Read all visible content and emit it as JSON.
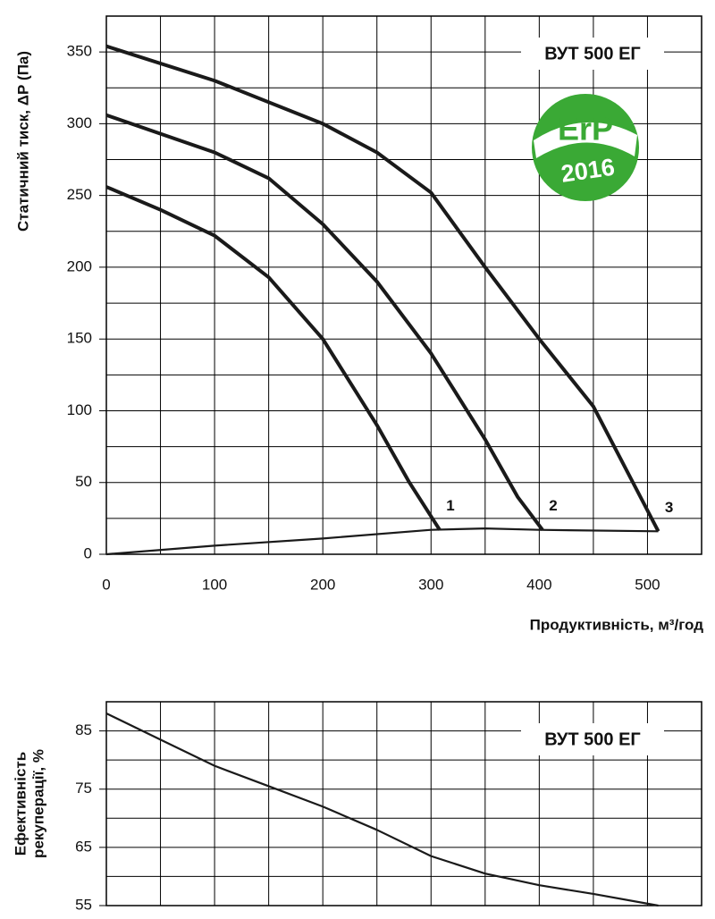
{
  "chart_data": [
    {
      "type": "line",
      "ylabel": "Статичний тиск, ΔР (Па)",
      "xlabel": "Продуктивність, м³/год",
      "badge": "ВУТ 500 ЕГ",
      "logo": {
        "text": "ErP",
        "year": "2016"
      },
      "xlim": [
        0,
        550
      ],
      "ylim": [
        0,
        375
      ],
      "xticks": [
        0,
        100,
        200,
        300,
        400,
        500
      ],
      "yticks": [
        0,
        50,
        100,
        150,
        200,
        250,
        300,
        350
      ],
      "xgrid": [
        50,
        150,
        250,
        350,
        450
      ],
      "ygrid": [
        25,
        75,
        125,
        175,
        225,
        275,
        325
      ],
      "series": [
        {
          "name": "1",
          "color": "#1a1a1a",
          "x": [
            0,
            50,
            100,
            150,
            200,
            250,
            280,
            308
          ],
          "values": [
            256,
            240,
            222,
            193,
            150,
            90,
            50,
            17
          ]
        },
        {
          "name": "2",
          "color": "#1a1a1a",
          "x": [
            0,
            100,
            150,
            200,
            250,
            300,
            350,
            380,
            403
          ],
          "values": [
            306,
            280,
            262,
            230,
            190,
            140,
            80,
            40,
            17
          ]
        },
        {
          "name": "3",
          "color": "#1a1a1a",
          "x": [
            0,
            100,
            200,
            250,
            300,
            350,
            400,
            450,
            490,
            510
          ],
          "values": [
            354,
            330,
            300,
            280,
            252,
            200,
            150,
            103,
            45,
            16
          ]
        },
        {
          "color": "#1a1a1a",
          "x": [
            0,
            100,
            200,
            300,
            350,
            400,
            510
          ],
          "values": [
            0,
            6,
            11,
            17,
            18,
            17,
            16
          ]
        }
      ]
    },
    {
      "type": "line",
      "ylabel": [
        "Ефективність",
        "рекуперації, %"
      ],
      "badge": "ВУТ 500 ЕГ",
      "xlim": [
        0,
        550
      ],
      "ylim": [
        55,
        90
      ],
      "yticks": [
        55,
        65,
        75,
        85
      ],
      "xgrid": [
        50,
        100,
        150,
        200,
        250,
        300,
        350,
        400,
        450,
        500
      ],
      "ygrid": [
        60,
        70,
        80
      ],
      "series": [
        {
          "color": "#1a1a1a",
          "x": [
            0,
            50,
            100,
            150,
            200,
            250,
            300,
            350,
            400,
            450,
            510
          ],
          "values": [
            88,
            83.5,
            79,
            75.5,
            72,
            68,
            63.5,
            60.5,
            58.5,
            57,
            55
          ]
        }
      ]
    }
  ]
}
